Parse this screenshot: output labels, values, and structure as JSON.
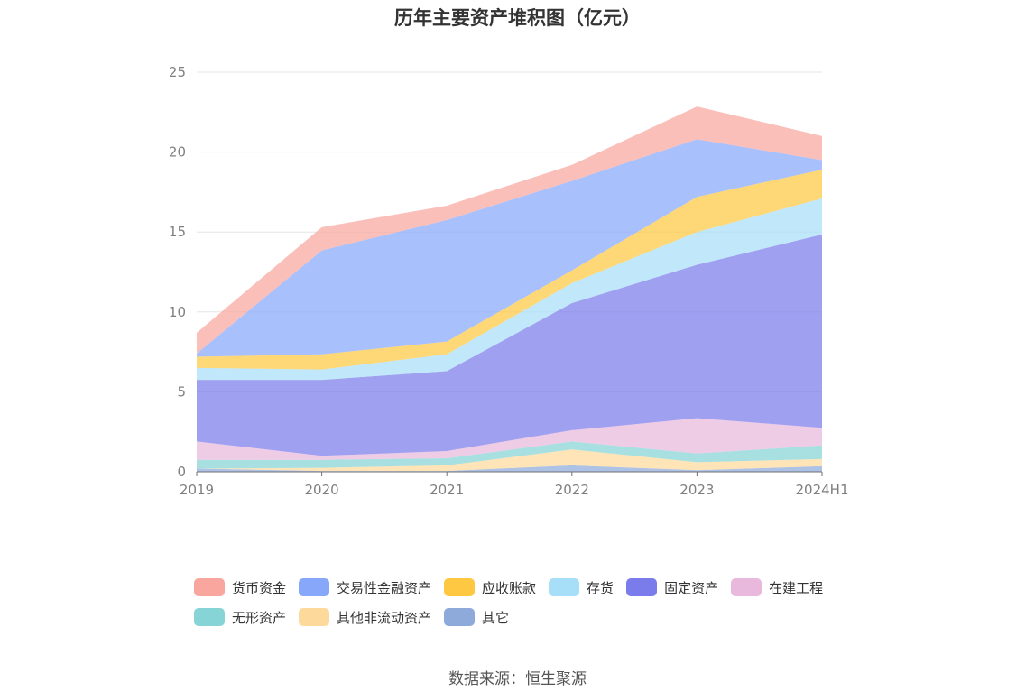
{
  "title": "历年主要资产堆积图（亿元）",
  "source": "数据来源：恒生聚源",
  "chart_data": {
    "type": "area",
    "stacked": true,
    "title": "历年主要资产堆积图（亿元）",
    "xlabel": "",
    "ylabel": "",
    "categories": [
      "2019",
      "2020",
      "2021",
      "2022",
      "2023",
      "2024H1"
    ],
    "ylim": [
      0,
      25
    ],
    "yticks": [
      0,
      5,
      10,
      15,
      20,
      25
    ],
    "grid": true,
    "legend_position": "bottom",
    "series": [
      {
        "name": "其它",
        "color": "#8eaadb",
        "values": [
          0.2,
          0.05,
          0.05,
          0.4,
          0.1,
          0.35
        ]
      },
      {
        "name": "其他非流动资产",
        "color": "#fdd99b",
        "values": [
          0.0,
          0.2,
          0.35,
          1.0,
          0.5,
          0.45
        ]
      },
      {
        "name": "无形资产",
        "color": "#86d4d6",
        "values": [
          0.55,
          0.5,
          0.45,
          0.5,
          0.55,
          0.85
        ]
      },
      {
        "name": "在建工程",
        "color": "#e8b9dc",
        "values": [
          1.15,
          0.25,
          0.45,
          0.7,
          2.2,
          1.1
        ]
      },
      {
        "name": "固定资产",
        "color": "#7b7cec",
        "values": [
          3.85,
          4.75,
          5.0,
          7.95,
          9.6,
          12.1
        ]
      },
      {
        "name": "存货",
        "color": "#a8dff8",
        "values": [
          0.75,
          0.65,
          1.05,
          1.25,
          2.05,
          2.25
        ]
      },
      {
        "name": "应收账款",
        "color": "#fec842",
        "values": [
          0.7,
          0.95,
          0.8,
          0.8,
          2.2,
          1.8
        ]
      },
      {
        "name": "交易性金融资产",
        "color": "#87a7fb",
        "values": [
          0.2,
          6.5,
          7.6,
          5.6,
          3.6,
          0.6
        ]
      },
      {
        "name": "货币资金",
        "color": "#f9a69f",
        "values": [
          1.3,
          1.45,
          0.9,
          1.0,
          2.05,
          1.5
        ]
      }
    ]
  },
  "legend": [
    {
      "name": "货币资金",
      "color": "#f9a69f"
    },
    {
      "name": "交易性金融资产",
      "color": "#87a7fb"
    },
    {
      "name": "应收账款",
      "color": "#fec842"
    },
    {
      "name": "存货",
      "color": "#a8dff8"
    },
    {
      "name": "固定资产",
      "color": "#7b7cec"
    },
    {
      "name": "在建工程",
      "color": "#e8b9dc"
    },
    {
      "name": "无形资产",
      "color": "#86d4d6"
    },
    {
      "name": "其他非流动资产",
      "color": "#fdd99b"
    },
    {
      "name": "其它",
      "color": "#8eaadb"
    }
  ]
}
